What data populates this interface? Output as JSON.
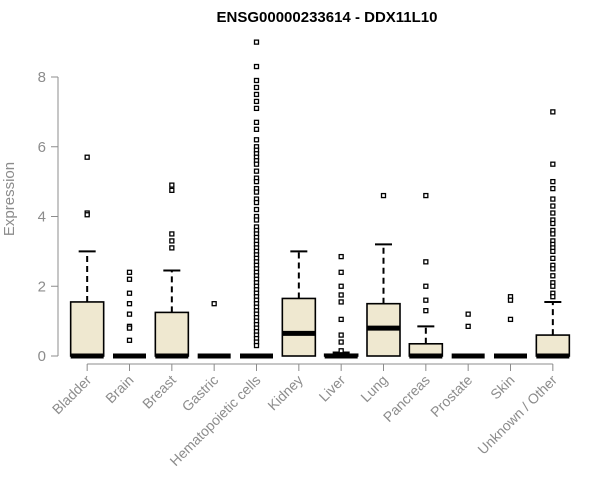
{
  "chart_data": {
    "type": "box",
    "title": "ENSG00000233614 - DDX11L10",
    "xlabel": "",
    "ylabel": "Expression",
    "ylim": [
      0,
      9
    ],
    "yticks": [
      0,
      2,
      4,
      6,
      8
    ],
    "grid": false,
    "legend": "none",
    "colors": {
      "box_fill": "#efe8d0",
      "box_stroke": "#000000",
      "axis": "#8c8c8c"
    },
    "categories": [
      "Bladder",
      "Brain",
      "Breast",
      "Gastric",
      "Hematopoietic cells",
      "Kidney",
      "Liver",
      "Lung",
      "Pancreas",
      "Prostate",
      "Skin",
      "Unknown / Other"
    ],
    "boxes": [
      {
        "q1": 0,
        "median": 0,
        "q3": 1.55,
        "whisker_low": 0,
        "whisker_high": 3.0,
        "outliers": [
          5.7,
          4.1,
          4.05
        ]
      },
      {
        "q1": 0,
        "median": 0,
        "q3": 0,
        "whisker_low": 0,
        "whisker_high": 0,
        "outliers": [
          2.4,
          2.2,
          1.8,
          1.5,
          1.2,
          0.85,
          0.8,
          0.45
        ]
      },
      {
        "q1": 0,
        "median": 0,
        "q3": 1.25,
        "whisker_low": 0,
        "whisker_high": 2.45,
        "outliers": [
          4.9,
          4.75,
          3.5,
          3.3,
          3.1
        ]
      },
      {
        "q1": 0,
        "median": 0,
        "q3": 0,
        "whisker_low": 0,
        "whisker_high": 0,
        "outliers": [
          1.5
        ]
      },
      {
        "q1": 0,
        "median": 0,
        "q3": 0,
        "whisker_low": 0,
        "whisker_high": 0,
        "outliers": [
          9.0,
          8.3,
          7.9,
          7.7,
          7.5,
          7.3,
          7.1,
          6.7,
          6.5,
          6.2,
          6.0,
          5.9,
          5.8,
          5.7,
          5.6,
          5.5,
          5.3,
          5.1,
          5.0,
          4.8,
          4.7,
          4.5,
          4.4,
          4.2,
          4.0,
          3.9,
          3.7,
          3.6,
          3.5,
          3.4,
          3.3,
          3.2,
          3.1,
          3.0,
          2.9,
          2.8,
          2.7,
          2.6,
          2.5,
          2.4,
          2.3,
          2.2,
          2.1,
          2.0,
          1.9,
          1.8,
          1.7,
          1.6,
          1.5,
          1.4,
          1.3,
          1.2,
          1.1,
          1.0,
          0.9,
          0.8,
          0.7,
          0.6,
          0.5,
          0.4,
          0.3
        ]
      },
      {
        "q1": 0,
        "median": 0.65,
        "q3": 1.65,
        "whisker_low": 0,
        "whisker_high": 3.0,
        "outliers": []
      },
      {
        "q1": 0,
        "median": 0,
        "q3": 0.05,
        "whisker_low": 0,
        "whisker_high": 0.1,
        "outliers": [
          2.85,
          2.4,
          2.0,
          1.75,
          1.55,
          1.05,
          0.6,
          0.4,
          0.15
        ]
      },
      {
        "q1": 0,
        "median": 0.8,
        "q3": 1.5,
        "whisker_low": 0,
        "whisker_high": 3.2,
        "outliers": [
          4.6
        ]
      },
      {
        "q1": 0,
        "median": 0,
        "q3": 0.35,
        "whisker_low": 0,
        "whisker_high": 0.85,
        "outliers": [
          4.6,
          2.7,
          2.0,
          1.6,
          1.3
        ]
      },
      {
        "q1": 0,
        "median": 0,
        "q3": 0,
        "whisker_low": 0,
        "whisker_high": 0,
        "outliers": [
          1.2,
          0.85
        ]
      },
      {
        "q1": 0,
        "median": 0,
        "q3": 0,
        "whisker_low": 0,
        "whisker_high": 0,
        "outliers": [
          1.7,
          1.6,
          1.05
        ]
      },
      {
        "q1": 0,
        "median": 0,
        "q3": 0.6,
        "whisker_low": 0,
        "whisker_high": 1.55,
        "outliers": [
          7.0,
          5.5,
          5.0,
          4.8,
          4.5,
          4.3,
          4.1,
          3.9,
          3.8,
          3.6,
          3.5,
          3.3,
          3.2,
          3.1,
          3.0,
          2.8,
          2.6,
          2.5,
          2.3,
          2.1,
          2.0,
          1.8,
          1.7
        ]
      }
    ]
  }
}
